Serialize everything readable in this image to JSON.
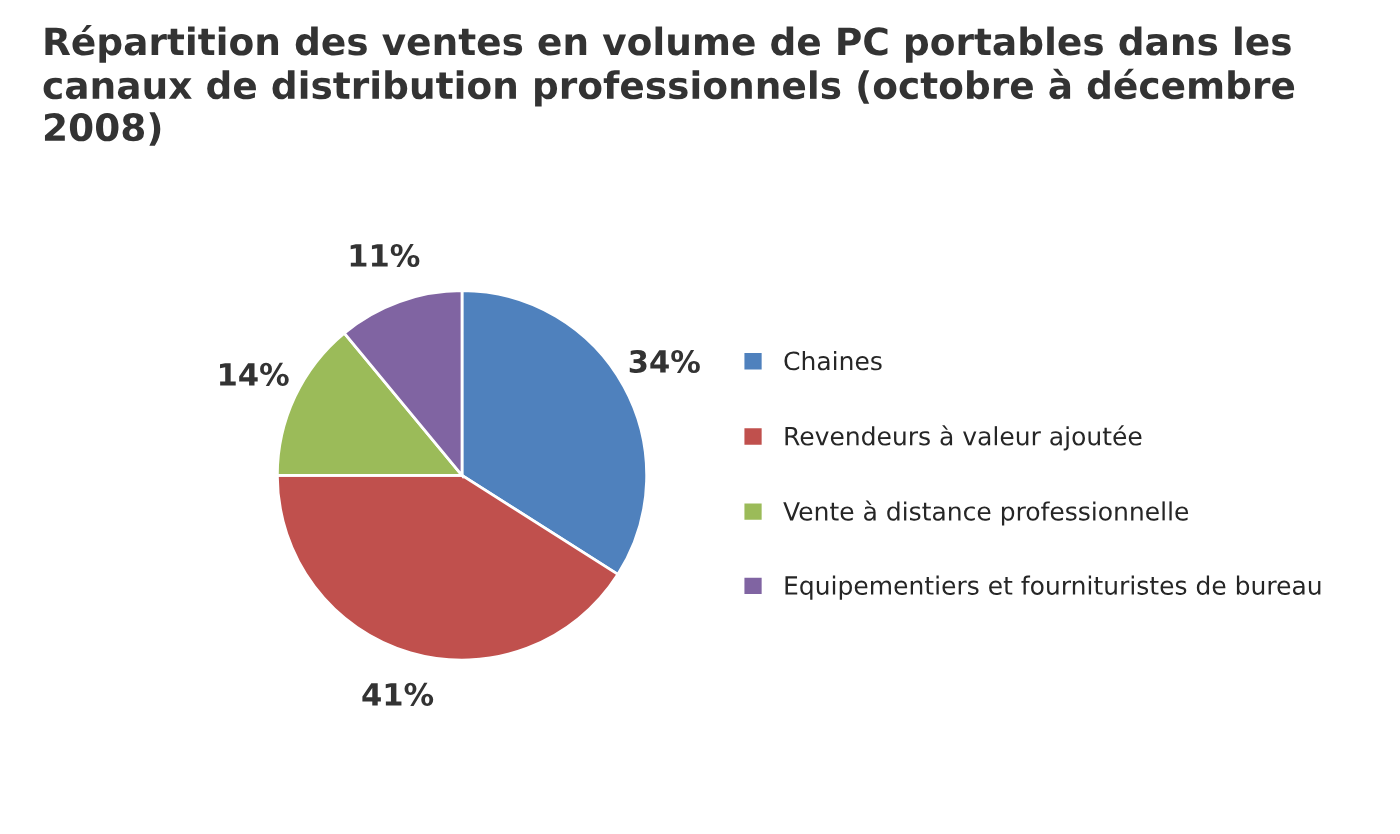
{
  "chart_data": {
    "type": "pie",
    "title": "Répartition des ventes en volume de PC portables dans les canaux de distribution professionnels (octobre à décembre 2008)",
    "categories": [
      "Chaines",
      "Revendeurs à valeur ajoutée",
      "Vente à distance professionnelle",
      "Equipementiers et fournituristes de bureau"
    ],
    "values": [
      34,
      41,
      14,
      11
    ],
    "colors": [
      "#4f81bd",
      "#c0504d",
      "#9bbb59",
      "#8064a2"
    ],
    "value_labels": [
      "34%",
      "41%",
      "14%",
      "11%"
    ],
    "legend": "right"
  }
}
